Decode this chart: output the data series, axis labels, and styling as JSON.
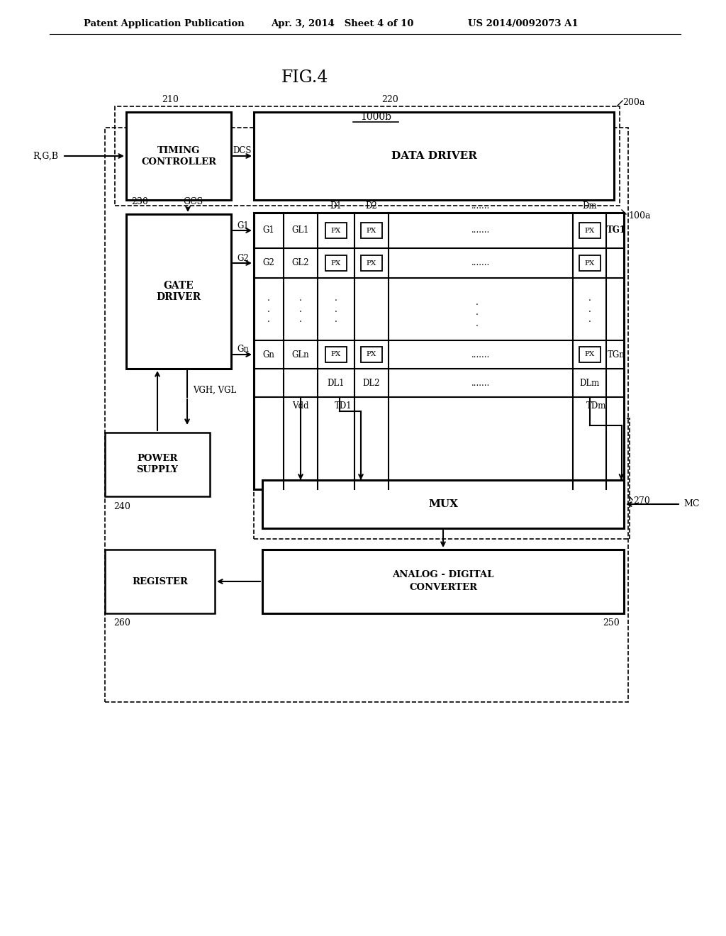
{
  "bg_color": "#ffffff",
  "header_left": "Patent Application Publication",
  "header_mid": "Apr. 3, 2014   Sheet 4 of 10",
  "header_right": "US 2014/0092073 A1",
  "fig_label": "FIG.4",
  "system_label": "1000b"
}
